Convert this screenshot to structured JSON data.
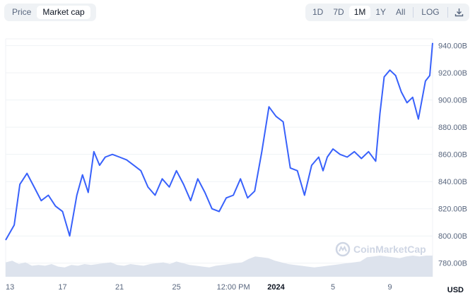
{
  "toggle": {
    "price_label": "Price",
    "market_cap_label": "Market cap",
    "active": "Market cap"
  },
  "ranges": {
    "items": [
      "1D",
      "7D",
      "1M",
      "1Y",
      "All"
    ],
    "active": "1M",
    "log_label": "LOG",
    "download_icon": "download-icon"
  },
  "watermark": "CoinMarketCap",
  "currency_label": "USD",
  "colors": {
    "line": "#3861fb",
    "volume": "#dde3ed",
    "grid": "#eff2f5"
  },
  "chart_data": {
    "type": "line",
    "ylim": [
      770,
      945
    ],
    "y_ticks": [
      780,
      800,
      820,
      840,
      860,
      880,
      900,
      920,
      940
    ],
    "y_tick_labels": [
      "780.00B",
      "800.00B",
      "820.00B",
      "840.00B",
      "860.00B",
      "880.00B",
      "900.00B",
      "920.00B",
      "940.00B"
    ],
    "x_tick_labels": [
      "13",
      "17",
      "21",
      "25",
      "12:00 PM",
      "2024",
      "5",
      "9"
    ],
    "x_tick_positions": [
      0,
      4,
      8,
      12,
      16,
      19,
      23,
      27
    ],
    "x_bold_label": "2024",
    "xlim": [
      0,
      30
    ],
    "series": [
      {
        "x": [
          0,
          0.6,
          1.0,
          1.5,
          2.0,
          2.5,
          3.0,
          3.5,
          4.0,
          4.5,
          5.0,
          5.4,
          5.8,
          6.2,
          6.6,
          7.0,
          7.5,
          8.0,
          8.5,
          9.0,
          9.5,
          10.0,
          10.5,
          11.0,
          11.5,
          12.0,
          12.5,
          13.0,
          13.5,
          14.0,
          14.5,
          15.0,
          15.5,
          16.0,
          16.5,
          17.0,
          17.5,
          18.0,
          18.5,
          19.0,
          19.5,
          20.0,
          20.5,
          21.0,
          21.5,
          22.0,
          22.3,
          22.6,
          23.0,
          23.5,
          24.0,
          24.5,
          25.0,
          25.5,
          26.0,
          26.3,
          26.6,
          27.0,
          27.4,
          27.8,
          28.2,
          28.6,
          29.0,
          29.5,
          29.8,
          30.0
        ],
        "values": [
          797,
          808,
          838,
          846,
          836,
          826,
          830,
          822,
          818,
          800,
          830,
          845,
          832,
          862,
          852,
          858,
          860,
          858,
          856,
          852,
          848,
          836,
          830,
          842,
          836,
          848,
          838,
          826,
          842,
          832,
          820,
          818,
          828,
          830,
          842,
          828,
          833,
          862,
          895,
          888,
          884,
          850,
          848,
          830,
          852,
          858,
          848,
          858,
          864,
          860,
          858,
          862,
          857,
          862,
          855,
          890,
          917,
          922,
          918,
          906,
          898,
          902,
          886,
          914,
          918,
          942
        ]
      }
    ],
    "volume_series": [
      0.6,
      0.7,
      0.5,
      0.6,
      0.4,
      0.45,
      0.4,
      0.5,
      0.35,
      0.3,
      0.45,
      0.4,
      0.5,
      0.45,
      0.5,
      0.55,
      0.6,
      0.45,
      0.4,
      0.5,
      0.45,
      0.4,
      0.5,
      0.55,
      0.6,
      0.5,
      0.65,
      0.55,
      0.45,
      0.4,
      0.35,
      0.3,
      0.4,
      0.45,
      0.5,
      0.55,
      0.6,
      0.8,
      0.95,
      0.9,
      0.85,
      0.7,
      0.6,
      0.5,
      0.45,
      0.4,
      0.35,
      0.3,
      0.35,
      0.4,
      0.45,
      0.5,
      0.55,
      0.6,
      0.65,
      0.9,
      0.95,
      1.0,
      0.95,
      0.9,
      0.85,
      0.95,
      1.0,
      0.95,
      1.0,
      1.0
    ]
  }
}
